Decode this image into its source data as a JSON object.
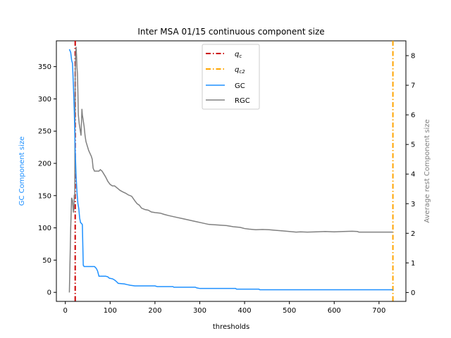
{
  "chart_data": {
    "type": "line",
    "title": "Inter MSA 01/15 continuous component size",
    "xlabel": "thresholds",
    "ylabel_left": "GC Component size",
    "ylabel_right": "Average rest Component size",
    "xlim": [
      -20,
      760
    ],
    "ylim_left": [
      -14,
      390
    ],
    "ylim_right": [
      -0.3,
      8.5
    ],
    "xticks": [
      0,
      100,
      200,
      300,
      400,
      500,
      600,
      700
    ],
    "yticks_left": [
      0,
      50,
      100,
      150,
      200,
      250,
      300,
      350
    ],
    "yticks_right": [
      0,
      1,
      2,
      3,
      4,
      5,
      6,
      7,
      8
    ],
    "colors": {
      "qc": "#cc0000",
      "qc2": "#ffa500",
      "gc": "#1e90ff",
      "rgc": "#808080",
      "left_label": "#1e90ff",
      "right_label": "#808080"
    },
    "legend": {
      "placement": "top-center",
      "entries": [
        {
          "key": "qc",
          "label": "q",
          "sub": "c",
          "style": "dashdot"
        },
        {
          "key": "qc2",
          "label": "q",
          "sub": "c2",
          "style": "dashdot"
        },
        {
          "key": "gc",
          "label": "GC",
          "style": "solid"
        },
        {
          "key": "rgc",
          "label": "RGC",
          "style": "solid"
        }
      ]
    },
    "vlines": {
      "qc": 22,
      "qc2": 731
    },
    "series": [
      {
        "name": "GC",
        "axis": "left",
        "points": [
          [
            9,
            377
          ],
          [
            12,
            372
          ],
          [
            14,
            360
          ],
          [
            16,
            355
          ],
          [
            18,
            320
          ],
          [
            20,
            280
          ],
          [
            22,
            220
          ],
          [
            24,
            180
          ],
          [
            26,
            155
          ],
          [
            28,
            138
          ],
          [
            30,
            130
          ],
          [
            32,
            115
          ],
          [
            34,
            108
          ],
          [
            36,
            107
          ],
          [
            38,
            105
          ],
          [
            40,
            42
          ],
          [
            42,
            40
          ],
          [
            60,
            40
          ],
          [
            65,
            40
          ],
          [
            68,
            38
          ],
          [
            70,
            36
          ],
          [
            72,
            33
          ],
          [
            75,
            25
          ],
          [
            90,
            25
          ],
          [
            95,
            24
          ],
          [
            98,
            22
          ],
          [
            105,
            21
          ],
          [
            108,
            20
          ],
          [
            112,
            18
          ],
          [
            115,
            16
          ],
          [
            118,
            14
          ],
          [
            132,
            13
          ],
          [
            138,
            12
          ],
          [
            145,
            11
          ],
          [
            155,
            10
          ],
          [
            200,
            10
          ],
          [
            205,
            9
          ],
          [
            240,
            9
          ],
          [
            242,
            8
          ],
          [
            290,
            8
          ],
          [
            293,
            7
          ],
          [
            300,
            6
          ],
          [
            380,
            6
          ],
          [
            382,
            5
          ],
          [
            432,
            5
          ],
          [
            434,
            4
          ],
          [
            731,
            4
          ]
        ]
      },
      {
        "name": "RGC",
        "axis": "right",
        "points": [
          [
            9,
            0
          ],
          [
            12,
            2.2
          ],
          [
            14,
            3.2
          ],
          [
            16,
            3.1
          ],
          [
            18,
            2.7
          ],
          [
            19,
            2.8
          ],
          [
            20,
            3.3
          ],
          [
            21,
            3.2
          ],
          [
            22,
            7.4
          ],
          [
            23,
            8.0
          ],
          [
            24,
            8.3
          ],
          [
            25,
            8.0
          ],
          [
            26,
            7.6
          ],
          [
            27,
            7.4
          ],
          [
            28,
            6.8
          ],
          [
            29,
            6.0
          ],
          [
            31,
            5.7
          ],
          [
            33,
            5.5
          ],
          [
            35,
            5.3
          ],
          [
            37,
            6.2
          ],
          [
            38,
            6.0
          ],
          [
            40,
            5.8
          ],
          [
            42,
            5.6
          ],
          [
            44,
            5.3
          ],
          [
            46,
            5.1
          ],
          [
            48,
            5.0
          ],
          [
            50,
            4.9
          ],
          [
            52,
            4.8
          ],
          [
            55,
            4.7
          ],
          [
            58,
            4.6
          ],
          [
            60,
            4.5
          ],
          [
            62,
            4.2
          ],
          [
            65,
            4.1
          ],
          [
            70,
            4.1
          ],
          [
            75,
            4.1
          ],
          [
            78,
            4.15
          ],
          [
            82,
            4.1
          ],
          [
            86,
            4.0
          ],
          [
            90,
            3.9
          ],
          [
            95,
            3.75
          ],
          [
            100,
            3.65
          ],
          [
            105,
            3.6
          ],
          [
            110,
            3.6
          ],
          [
            118,
            3.5
          ],
          [
            122,
            3.45
          ],
          [
            128,
            3.4
          ],
          [
            135,
            3.35
          ],
          [
            140,
            3.3
          ],
          [
            148,
            3.25
          ],
          [
            155,
            3.1
          ],
          [
            160,
            3.0
          ],
          [
            165,
            2.95
          ],
          [
            170,
            2.85
          ],
          [
            178,
            2.8
          ],
          [
            185,
            2.78
          ],
          [
            192,
            2.72
          ],
          [
            200,
            2.7
          ],
          [
            212,
            2.68
          ],
          [
            220,
            2.64
          ],
          [
            230,
            2.6
          ],
          [
            245,
            2.55
          ],
          [
            260,
            2.5
          ],
          [
            275,
            2.45
          ],
          [
            290,
            2.4
          ],
          [
            305,
            2.35
          ],
          [
            320,
            2.3
          ],
          [
            340,
            2.28
          ],
          [
            360,
            2.26
          ],
          [
            375,
            2.22
          ],
          [
            390,
            2.2
          ],
          [
            400,
            2.16
          ],
          [
            410,
            2.14
          ],
          [
            425,
            2.12
          ],
          [
            440,
            2.13
          ],
          [
            455,
            2.12
          ],
          [
            470,
            2.1
          ],
          [
            485,
            2.08
          ],
          [
            500,
            2.06
          ],
          [
            515,
            2.04
          ],
          [
            525,
            2.05
          ],
          [
            540,
            2.04
          ],
          [
            560,
            2.05
          ],
          [
            580,
            2.06
          ],
          [
            600,
            2.05
          ],
          [
            620,
            2.06
          ],
          [
            640,
            2.07
          ],
          [
            652,
            2.06
          ],
          [
            655,
            2.04
          ],
          [
            680,
            2.04
          ],
          [
            700,
            2.04
          ],
          [
            731,
            2.04
          ]
        ]
      }
    ]
  }
}
